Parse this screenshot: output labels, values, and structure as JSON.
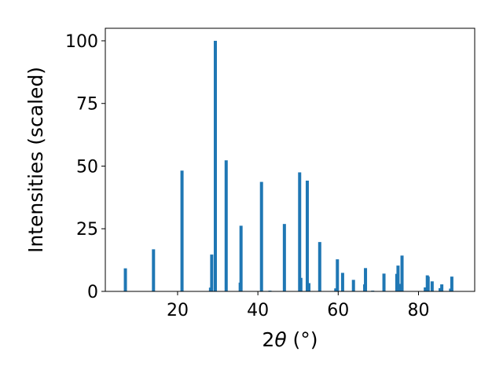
{
  "chart_data": {
    "type": "bar",
    "title": "",
    "xlabel_parts": {
      "prefix": "2",
      "symbol": "θ",
      "unit": " (°)"
    },
    "ylabel": "Intensities (scaled)",
    "xlim": [
      2,
      94
    ],
    "ylim": [
      0,
      105
    ],
    "xticks": [
      20,
      40,
      60,
      80
    ],
    "yticks": [
      0,
      25,
      50,
      75,
      100
    ],
    "bar_color": "#1f77b4",
    "grid": false,
    "x": [
      7.0,
      14.0,
      21.1,
      28.2,
      28.5,
      29.4,
      32.1,
      35.6,
      35.8,
      40.9,
      43.0,
      46.6,
      50.4,
      50.7,
      52.3,
      52.7,
      55.4,
      59.4,
      59.8,
      61.1,
      63.8,
      66.6,
      66.8,
      68.6,
      71.4,
      74.6,
      74.9,
      75.6,
      75.9,
      81.7,
      82.2,
      82.4,
      83.4,
      85.4,
      85.8,
      88.0,
      88.3
    ],
    "values": [
      9.2,
      16.8,
      48.2,
      1.5,
      14.7,
      100.0,
      52.3,
      3.5,
      26.2,
      43.7,
      0.3,
      26.9,
      47.5,
      5.4,
      44.2,
      3.3,
      19.7,
      1.2,
      12.8,
      7.4,
      4.6,
      2.8,
      9.3,
      0.3,
      7.1,
      7.0,
      10.3,
      3.0,
      14.3,
      1.6,
      6.4,
      5.9,
      4.0,
      1.3,
      2.8,
      1.1,
      5.9
    ]
  }
}
